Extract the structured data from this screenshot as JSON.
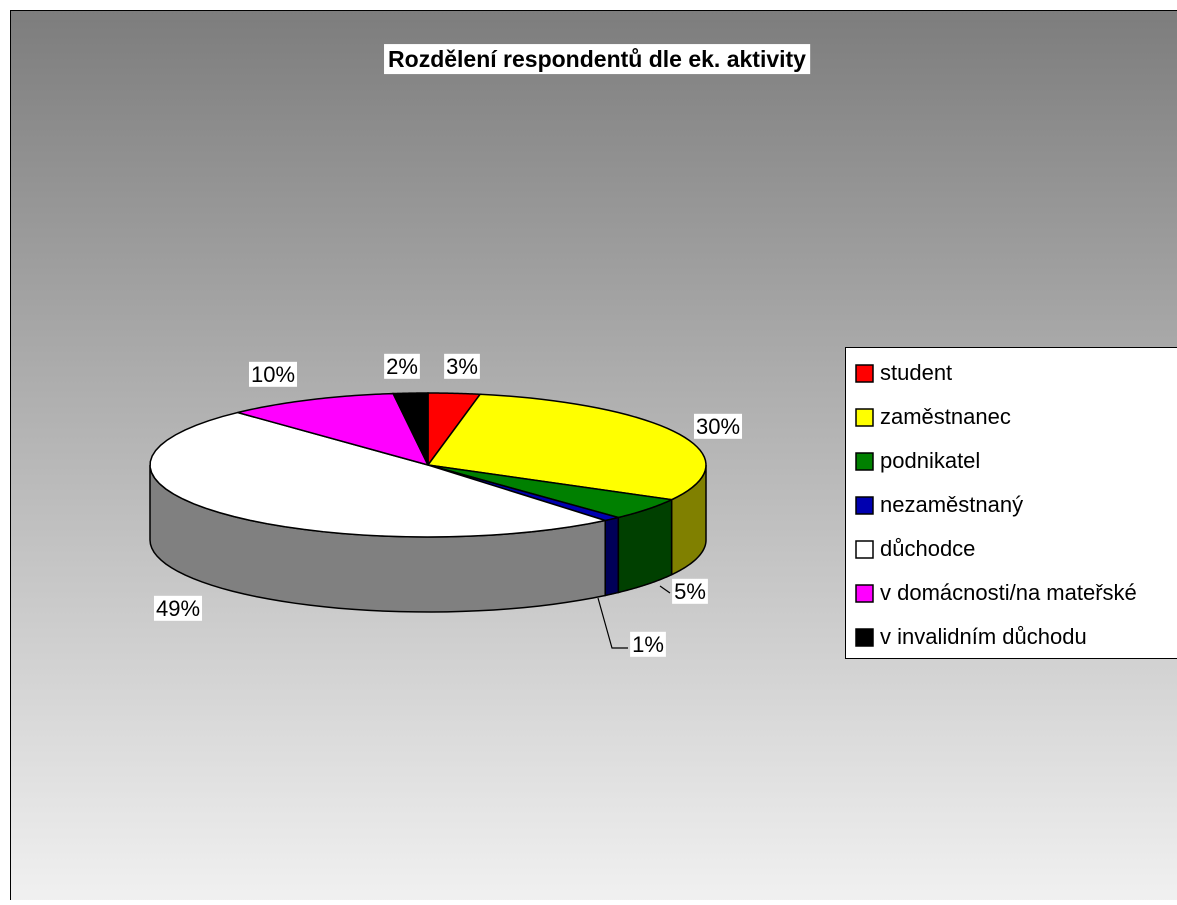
{
  "chart_data": {
    "type": "pie",
    "title": "Rozdělení respondentů dle ek. aktivity",
    "categories": [
      "student",
      "zaměstnanec",
      "podnikatel",
      "nezaměstnaný",
      "důchodce",
      "v domácnosti/na mateřské",
      "v invalidním důchodu"
    ],
    "values": [
      3,
      30,
      5,
      1,
      49,
      10,
      2
    ],
    "value_labels": [
      "3%",
      "30%",
      "5%",
      "1%",
      "49%",
      "10%",
      "2%"
    ],
    "colors": [
      "#ff0000",
      "#ffff00",
      "#008000",
      "#0000b0",
      "#ffffff",
      "#ff00ff",
      "#000000"
    ],
    "legend": "right"
  }
}
